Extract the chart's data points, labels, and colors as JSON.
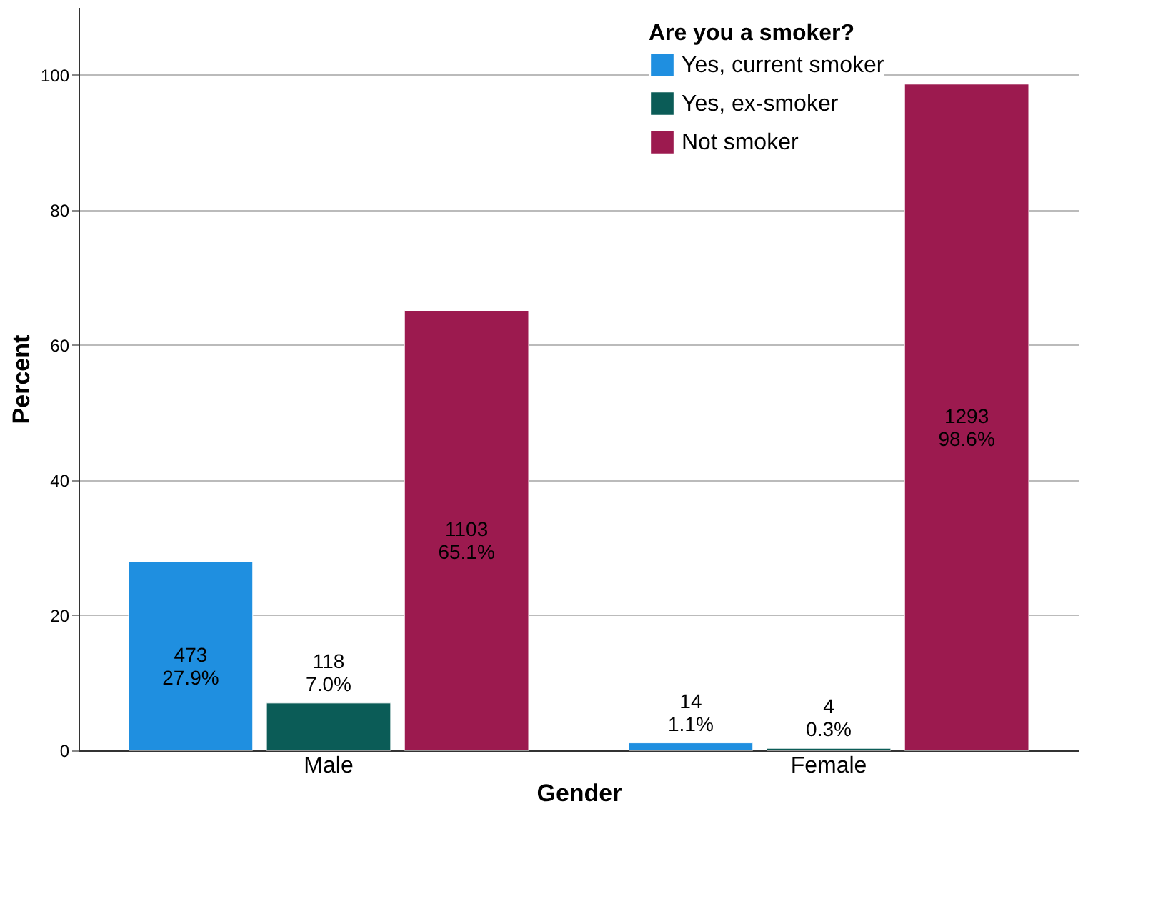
{
  "chart_data": {
    "type": "bar",
    "xlabel": "Gender",
    "ylabel": "Percent",
    "legend_title": "Are you a smoker?",
    "categories": [
      "Male",
      "Female"
    ],
    "series": [
      {
        "name": "Yes, current smoker",
        "color": "#1f8fe0",
        "values": [
          27.9,
          1.1
        ],
        "value_labels": [
          "473\n27.9%",
          "14\n1.1%"
        ]
      },
      {
        "name": "Yes, ex-smoker",
        "color": "#0b5c57",
        "values": [
          7.0,
          0.3
        ],
        "value_labels": [
          "118\n7.0%",
          "4\n0.3%"
        ]
      },
      {
        "name": "Not smoker",
        "color": "#9c1a4f",
        "values": [
          65.1,
          98.6
        ],
        "value_labels": [
          "1103\n65.1%",
          "1293\n98.6%"
        ]
      }
    ],
    "ylim": [
      0,
      110
    ],
    "yticks": [
      0,
      20,
      40,
      60,
      80,
      100
    ],
    "grid": "y",
    "legend": "top right"
  }
}
